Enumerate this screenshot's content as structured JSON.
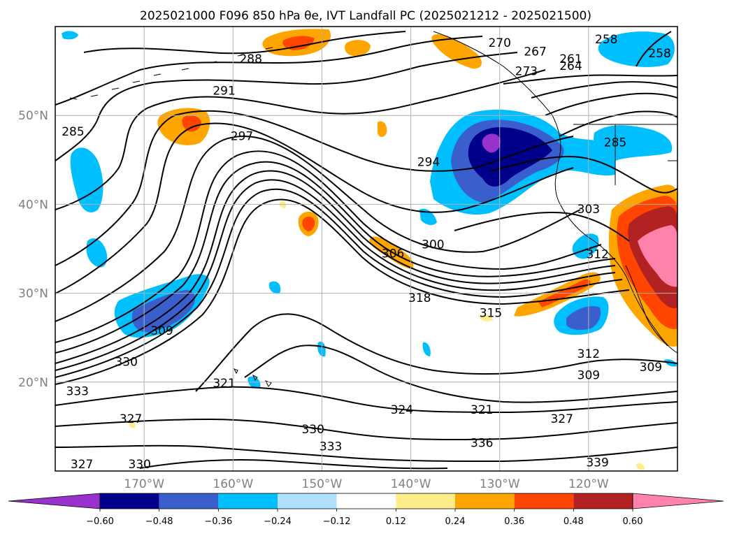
{
  "chart_data": {
    "type": "heatmap",
    "title": "2025021000 F096 850 hPa θe, IVT Landfall PC (2025021212 - 2025021500)",
    "projection": "lat-lon",
    "xlim": [
      -180,
      -110
    ],
    "ylim": [
      10,
      60
    ],
    "grid": true,
    "x_ticks": [
      -170,
      -160,
      -150,
      -140,
      -130,
      -120
    ],
    "x_ticklabels": [
      "170°W",
      "160°W",
      "150°W",
      "140°W",
      "130°W",
      "120°W"
    ],
    "y_ticks": [
      20,
      30,
      40,
      50
    ],
    "y_ticklabels": [
      "20°N",
      "30°N",
      "40°N",
      "50°N"
    ],
    "colorbar": {
      "orientation": "horizontal",
      "extend": "both",
      "ticks": [
        "−0.60",
        "−0.48",
        "−0.36",
        "−0.24",
        "−0.12",
        "0.12",
        "0.24",
        "0.36",
        "0.48",
        "0.60"
      ],
      "levels": [
        -0.6,
        -0.48,
        -0.36,
        -0.24,
        -0.12,
        0.12,
        0.24,
        0.36,
        0.48,
        0.6
      ],
      "colors": [
        "#9932cc",
        "#00008b",
        "#3a5fcd",
        "#00bfff",
        "#b0e2ff",
        "#ffffff",
        "#ffec8b",
        "#ffa500",
        "#ff4500",
        "#b22222",
        "#ff82ab"
      ]
    },
    "contour_labels": [
      {
        "text": "288",
        "lon": -158,
        "lat": 56.4
      },
      {
        "text": "291",
        "lon": -161,
        "lat": 52.8
      },
      {
        "text": "297",
        "lon": -159,
        "lat": 47.7
      },
      {
        "text": "294",
        "lon": -138,
        "lat": 44.8
      },
      {
        "text": "303",
        "lon": -120,
        "lat": 39.5
      },
      {
        "text": "300",
        "lon": -137.5,
        "lat": 35.5
      },
      {
        "text": "306",
        "lon": -142,
        "lat": 34.5
      },
      {
        "text": "312",
        "lon": -119,
        "lat": 34.4
      },
      {
        "text": "318",
        "lon": -139,
        "lat": 29.5
      },
      {
        "text": "315",
        "lon": -131,
        "lat": 27.8
      },
      {
        "text": "309",
        "lon": -168,
        "lat": 25.8
      },
      {
        "text": "330",
        "lon": -172,
        "lat": 22.3
      },
      {
        "text": "321",
        "lon": -161,
        "lat": 19.9
      },
      {
        "text": "312",
        "lon": -120,
        "lat": 23.2
      },
      {
        "text": "309",
        "lon": -120,
        "lat": 20.8
      },
      {
        "text": "309",
        "lon": -113,
        "lat": 21.7
      },
      {
        "text": "333",
        "lon": -177.5,
        "lat": 19.0
      },
      {
        "text": "324",
        "lon": -141,
        "lat": 16.9
      },
      {
        "text": "321",
        "lon": -132,
        "lat": 16.9
      },
      {
        "text": "327",
        "lon": -123,
        "lat": 15.9
      },
      {
        "text": "327",
        "lon": -171.5,
        "lat": 15.9
      },
      {
        "text": "330",
        "lon": -151,
        "lat": 14.7
      },
      {
        "text": "333",
        "lon": -149,
        "lat": 12.8
      },
      {
        "text": "336",
        "lon": -132,
        "lat": 13.2
      },
      {
        "text": "339",
        "lon": -119,
        "lat": 11.0
      },
      {
        "text": "327",
        "lon": -177,
        "lat": 10.8
      },
      {
        "text": "330",
        "lon": -170.5,
        "lat": 10.8
      },
      {
        "text": "270",
        "lon": -130,
        "lat": 58.2
      },
      {
        "text": "267",
        "lon": -126,
        "lat": 57.2
      },
      {
        "text": "261",
        "lon": -122,
        "lat": 56.4
      },
      {
        "text": "264",
        "lon": -122,
        "lat": 55.6
      },
      {
        "text": "258",
        "lon": -118,
        "lat": 58.6
      },
      {
        "text": "258",
        "lon": -112,
        "lat": 57.0
      },
      {
        "text": "273",
        "lon": -127,
        "lat": 55.0
      },
      {
        "text": "285",
        "lon": -178,
        "lat": 48.2
      },
      {
        "text": "285",
        "lon": -117,
        "lat": 47.0
      }
    ],
    "features": [
      {
        "name": "negative-anomaly-northeast-pacific",
        "value": -0.6,
        "lon": -131,
        "lat": 47
      },
      {
        "name": "positive-anomaly-california",
        "value": 0.6,
        "lon": -113,
        "lat": 34
      },
      {
        "name": "negative-anomaly-subtropical-west",
        "value": -0.48,
        "lon": -167,
        "lat": 29
      },
      {
        "name": "positive-anomaly-subtropical-band",
        "value": 0.36,
        "lon": -128,
        "lat": 28
      }
    ]
  }
}
